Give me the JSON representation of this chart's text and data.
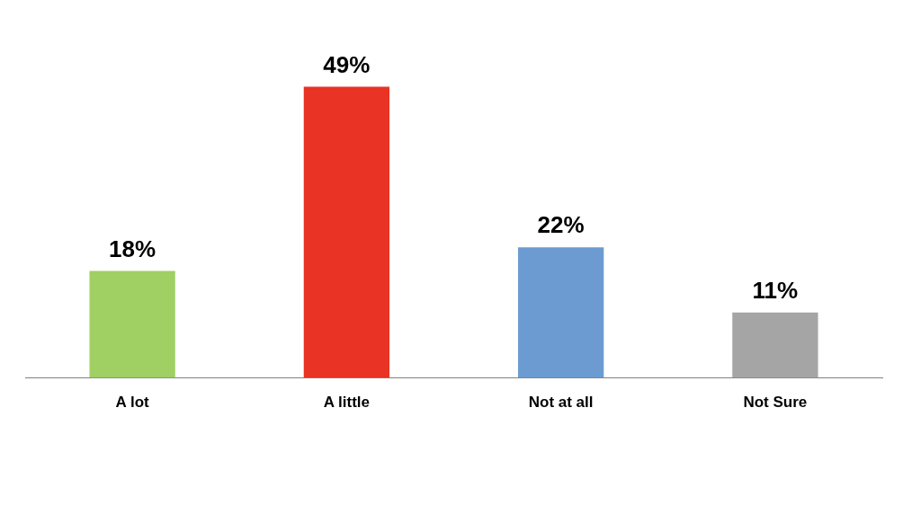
{
  "chart_data": {
    "type": "bar",
    "categories": [
      "A lot",
      "A little",
      "Not at all",
      "Not Sure"
    ],
    "values": [
      18,
      49,
      22,
      11
    ],
    "colors": [
      "#a0cf63",
      "#e93324",
      "#6b9bd1",
      "#a5a5a5"
    ],
    "value_labels": [
      "18%",
      "49%",
      "22%",
      "11%"
    ],
    "grid": false,
    "legend": false
  }
}
